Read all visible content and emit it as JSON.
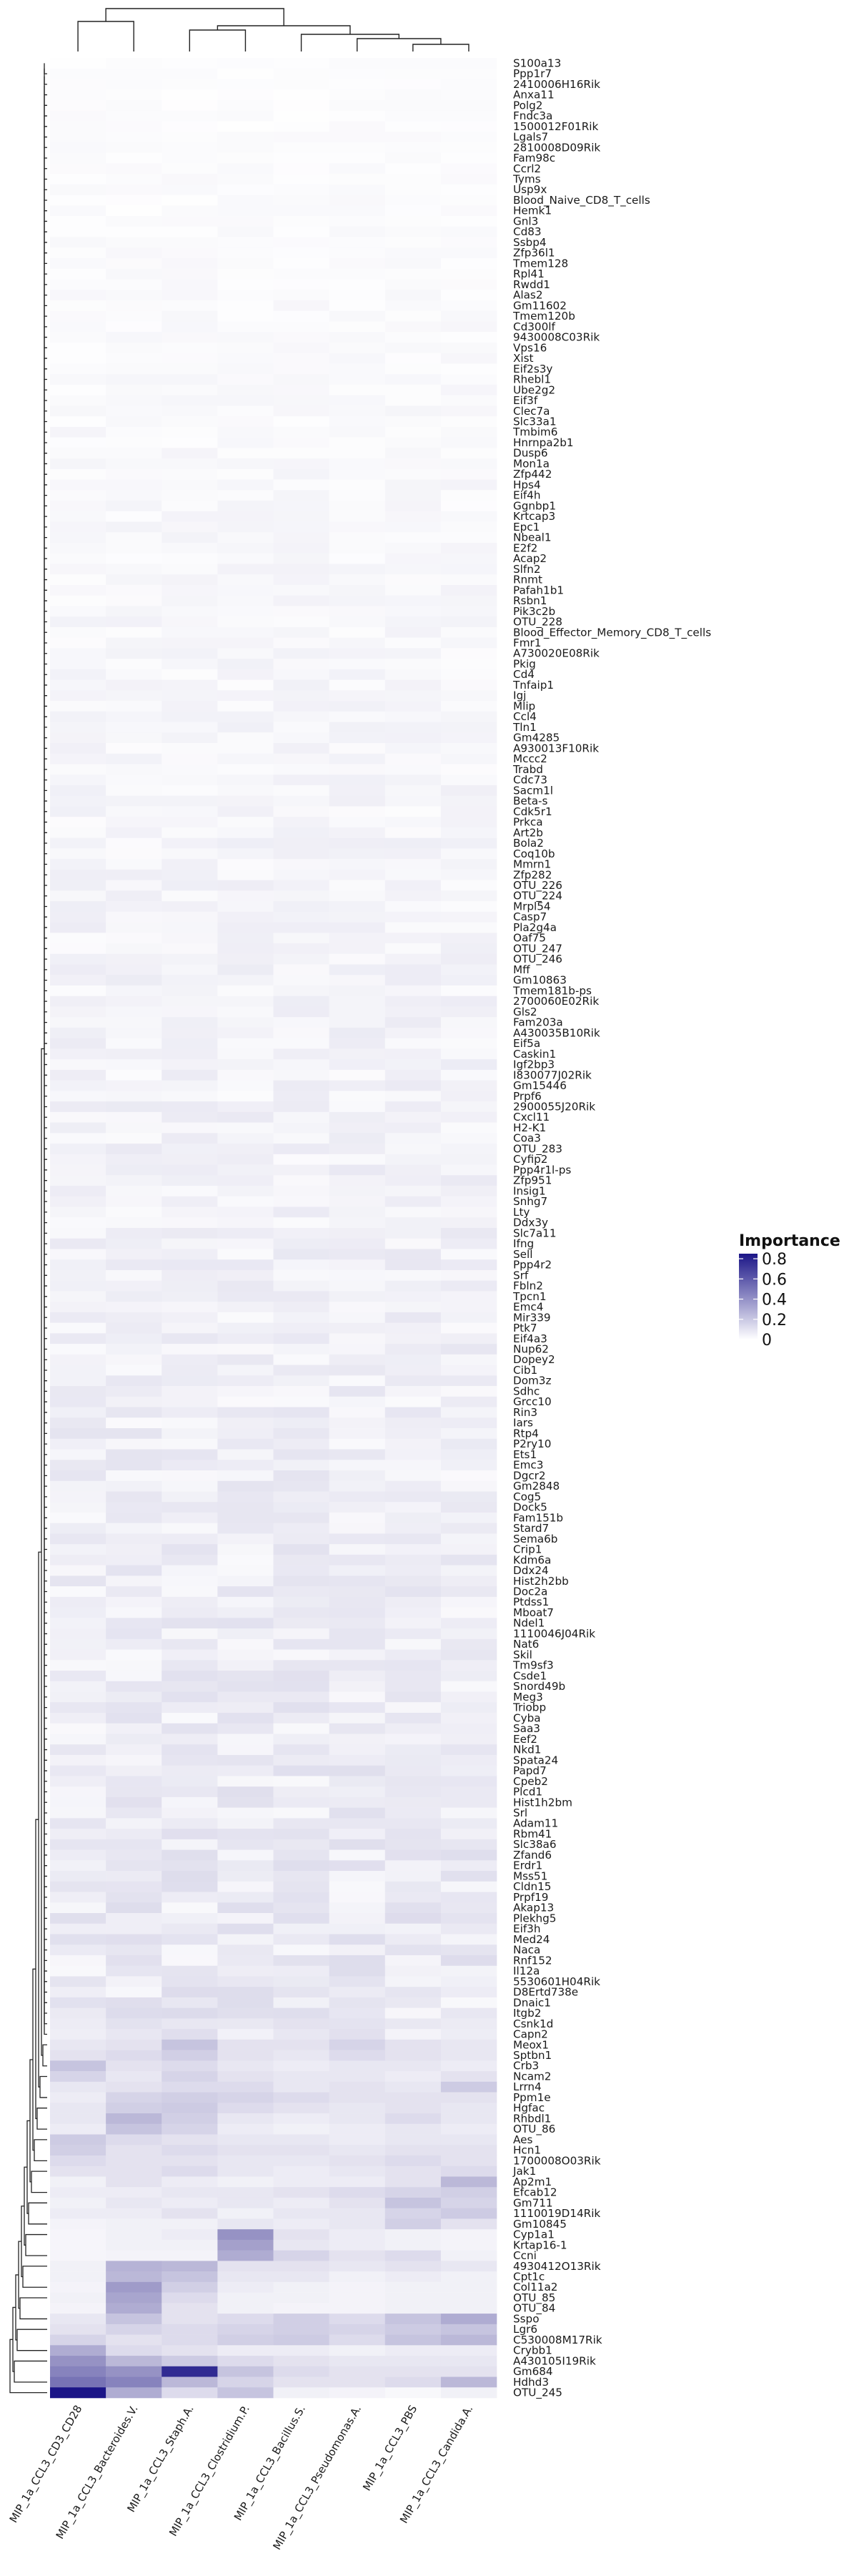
{
  "chart_data": {
    "type": "heatmap",
    "title": "",
    "xlabel": "",
    "ylabel": "",
    "columns": [
      "MIP_1a_CCL3_CD3_CD28",
      "MIP_1a_CCL3_Bacteroides.V.",
      "MIP_1a_CCL3_Staph.A.",
      "MIP_1a_CCL3_Clostridium.P.",
      "MIP_1a_CCL3_Bacillus.S.",
      "MIP_1a_CCL3_Pseudomonas.A.",
      "MIP_1a_CCL3_PBS",
      "MIP_1a_CCL3_Candida.A."
    ],
    "rows": [
      "S100a13",
      "Ppp1r7",
      "2410006H16Rik",
      "Anxa11",
      "Polg2",
      "Fndc3a",
      "1500012F01Rik",
      "Lgals7",
      "2810008D09Rik",
      "Fam98c",
      "Ccrl2",
      "Tyms",
      "Usp9x",
      "Blood_Naive_CD8_T_cells",
      "Hemk1",
      "Gnl3",
      "Cd83",
      "Ssbp4",
      "Zfp36l1",
      "Tmem128",
      "Rpl41",
      "Rwdd1",
      "Alas2",
      "Gm11602",
      "Tmem120b",
      "Cd300lf",
      "9430008C03Rik",
      "Vps16",
      "Xist",
      "Eif2s3y",
      "Rhebl1",
      "Ube2g2",
      "Eif3f",
      "Clec7a",
      "Slc33a1",
      "Tmbim6",
      "Hnrnpa2b1",
      "Dusp6",
      "Mon1a",
      "Zfp442",
      "Hps4",
      "Eif4h",
      "Ggnbp1",
      "Krtcap3",
      "Epc1",
      "Nbeal1",
      "E2f2",
      "Acap2",
      "Slfn2",
      "Rnmt",
      "Pafah1b1",
      "Rsbn1",
      "Pik3c2b",
      "OTU_228",
      "Blood_Effector_Memory_CD8_T_cells",
      "Fmr1",
      "A730020E08Rik",
      "Pkig",
      "Cd4",
      "Tnfaip1",
      "Igj",
      "Mlip",
      "Ccl4",
      "Tln1",
      "Gm4285",
      "A930013F10Rik",
      "Mccc2",
      "Trabd",
      "Cdc73",
      "Sacm1l",
      "Beta-s",
      "Cdk5r1",
      "Prkca",
      "Art2b",
      "Bola2",
      "Coq10b",
      "Mmrn1",
      "Zfp282",
      "OTU_226",
      "OTU_224",
      "Mrpl54",
      "Casp7",
      "Pla2g4a",
      "Oaf75",
      "OTU_247",
      "OTU_246",
      "Mff",
      "Gm10863",
      "Tmem181b-ps",
      "2700060E02Rik",
      "Gls2",
      "Fam203a",
      "A430035B10Rik",
      "Eif5a",
      "Caskin1",
      "Igf2bp3",
      "I830077J02Rik",
      "Gm15446",
      "Prpf6",
      "2900055J20Rik",
      "Cxcl11",
      "H2-K1",
      "Coa3",
      "OTU_283",
      "Cyfip2",
      "Ppp4r1l-ps",
      "Zfp951",
      "Insig1",
      "Snhg7",
      "Lty",
      "Ddx3y",
      "Slc7a11",
      "Ifng",
      "Sell",
      "Ppp4r2",
      "Srf",
      "Fbln2",
      "Tpcn1",
      "Emc4",
      "Mir339",
      "Ptk7",
      "Eif4a3",
      "Nup62",
      "Dopey2",
      "Cib1",
      "Dom3z",
      "Sdhc",
      "Grcc10",
      "Rin3",
      "Iars",
      "Rtp4",
      "P2ry10",
      "Ets1",
      "Emc3",
      "Dgcr2",
      "Gm2848",
      "Cog5",
      "Dock5",
      "Fam151b",
      "Stard7",
      "Sema6b",
      "Crip1",
      "Kdm6a",
      "Ddx24",
      "Hist2h2bb",
      "Doc2a",
      "Ptdss1",
      "Mboat7",
      "Ndel1",
      "1110046J04Rik",
      "Nat6",
      "Skil",
      "Tm9sf3",
      "Csde1",
      "Snord49b",
      "Meg3",
      "Triobp",
      "Cyba",
      "Saa3",
      "Eef2",
      "Nkd1",
      "Spata24",
      "Papd7",
      "Cpeb2",
      "Plcd1",
      "Hist1h2bm",
      "Srl",
      "Adam11",
      "Rbm41",
      "Slc38a6",
      "Zfand6",
      "Erdr1",
      "Mss51",
      "Cldn15",
      "Prpf19",
      "Akap13",
      "Plekhg5",
      "Eif3h",
      "Med24",
      "Naca",
      "Rnf152",
      "Il12a",
      "5530601H04Rik",
      "D8Ertd738e",
      "Dnaic1",
      "Itgb2",
      "Csnk1d",
      "Capn2",
      "Meox1",
      "Sptbn1",
      "Crb3",
      "Ncam2",
      "Lrrn4",
      "Ppm1e",
      "Hgfac",
      "Rhbdl1",
      "OTU_86",
      "Aes",
      "Hcn1",
      "1700008O03Rik",
      "Jak1",
      "Ap2m1",
      "Efcab12",
      "Gm711",
      "1110019D14Rik",
      "Gm10845",
      "Cyp1a1",
      "Krtap16-1",
      "Ccni",
      "4930412O13Rik",
      "Cpt1c",
      "Col11a2",
      "OTU_85",
      "OTU_84",
      "Sspo",
      "Lgr6",
      "C530008M17Rik",
      "Crybb1",
      "A430105I19Rik",
      "Gm684",
      "Hdhd3",
      "OTU_245"
    ],
    "strong_values": {
      "OTU_245": [
        0.85,
        0.35,
        0.15,
        0.25,
        0.06,
        0.05,
        0.03,
        0.06
      ],
      "Hdhd3": [
        0.55,
        0.5,
        0.3,
        0.18,
        0.12,
        0.12,
        0.15,
        0.3
      ],
      "Gm684": [
        0.5,
        0.45,
        0.78,
        0.25,
        0.15,
        0.12,
        0.12,
        0.12
      ],
      "A430105I19Rik": [
        0.45,
        0.3,
        0.22,
        0.15,
        0.12,
        0.1,
        0.1,
        0.1
      ],
      "Crybb1": [
        0.35,
        0.15,
        0.12,
        0.08,
        0.08,
        0.06,
        0.08,
        0.08
      ],
      "C530008M17Rik": [
        0.18,
        0.12,
        0.15,
        0.2,
        0.22,
        0.15,
        0.25,
        0.3
      ],
      "Lgr6": [
        0.12,
        0.18,
        0.15,
        0.18,
        0.2,
        0.18,
        0.22,
        0.25
      ],
      "Sspo": [
        0.1,
        0.25,
        0.12,
        0.15,
        0.2,
        0.15,
        0.25,
        0.35
      ],
      "OTU_84": [
        0.05,
        0.35,
        0.12,
        0.06,
        0.05,
        0.05,
        0.06,
        0.06
      ],
      "OTU_85": [
        0.06,
        0.38,
        0.15,
        0.06,
        0.06,
        0.05,
        0.06,
        0.06
      ],
      "Col11a2": [
        0.05,
        0.42,
        0.2,
        0.08,
        0.06,
        0.05,
        0.06,
        0.06
      ],
      "Cpt1c": [
        0.06,
        0.3,
        0.25,
        0.1,
        0.1,
        0.06,
        0.08,
        0.06
      ],
      "4930412O13Rik": [
        0.06,
        0.32,
        0.3,
        0.12,
        0.12,
        0.1,
        0.12,
        0.1
      ],
      "Ccni": [
        0.04,
        0.05,
        0.05,
        0.35,
        0.18,
        0.12,
        0.15,
        0.06
      ],
      "Krtap16-1": [
        0.04,
        0.06,
        0.06,
        0.4,
        0.1,
        0.08,
        0.06,
        0.05
      ],
      "Cyp1a1": [
        0.04,
        0.06,
        0.08,
        0.45,
        0.12,
        0.08,
        0.06,
        0.05
      ],
      "Gm10845": [
        0.05,
        0.06,
        0.06,
        0.1,
        0.08,
        0.1,
        0.2,
        0.12
      ],
      "1110019D14Rik": [
        0.08,
        0.08,
        0.12,
        0.06,
        0.1,
        0.1,
        0.18,
        0.22
      ],
      "Gm711": [
        0.06,
        0.1,
        0.08,
        0.1,
        0.08,
        0.12,
        0.25,
        0.18
      ],
      "Efcab12": [
        0.08,
        0.08,
        0.1,
        0.1,
        0.12,
        0.15,
        0.18,
        0.2
      ],
      "Ap2m1": [
        0.06,
        0.12,
        0.08,
        0.06,
        0.08,
        0.08,
        0.12,
        0.3
      ],
      "Jak1": [
        0.12,
        0.12,
        0.15,
        0.1,
        0.08,
        0.1,
        0.12,
        0.15
      ],
      "1700008O03Rik": [
        0.15,
        0.12,
        0.12,
        0.1,
        0.1,
        0.12,
        0.15,
        0.12
      ],
      "Hcn1": [
        0.2,
        0.12,
        0.15,
        0.12,
        0.12,
        0.1,
        0.12,
        0.12
      ],
      "Aes": [
        0.22,
        0.15,
        0.12,
        0.1,
        0.1,
        0.08,
        0.1,
        0.1
      ],
      "OTU_86": [
        0.08,
        0.25,
        0.18,
        0.08,
        0.06,
        0.08,
        0.1,
        0.08
      ],
      "Rhbdl1": [
        0.1,
        0.3,
        0.2,
        0.1,
        0.08,
        0.1,
        0.15,
        0.1
      ],
      "Hgfac": [
        0.1,
        0.2,
        0.22,
        0.15,
        0.12,
        0.1,
        0.12,
        0.1
      ],
      "Ppm1e": [
        0.08,
        0.18,
        0.2,
        0.18,
        0.15,
        0.12,
        0.12,
        0.12
      ],
      "Lrrn4": [
        0.1,
        0.12,
        0.15,
        0.15,
        0.1,
        0.12,
        0.1,
        0.22
      ],
      "Ncam2": [
        0.18,
        0.1,
        0.18,
        0.12,
        0.1,
        0.1,
        0.08,
        0.12
      ],
      "Crb3": [
        0.25,
        0.12,
        0.15,
        0.1,
        0.08,
        0.1,
        0.1,
        0.08
      ],
      "Sptbn1": [
        0.12,
        0.15,
        0.2,
        0.12,
        0.1,
        0.15,
        0.12,
        0.1
      ],
      "Meox1": [
        0.1,
        0.12,
        0.25,
        0.12,
        0.12,
        0.18,
        0.12,
        0.1
      ]
    },
    "legend": {
      "title": "Importance",
      "ticks": [
        0.8,
        0.6,
        0.4,
        0.2,
        0
      ],
      "range": [
        0,
        0.85
      ],
      "color_low": "#ffffff",
      "color_high": "#1b1587",
      "placement": "right"
    }
  }
}
